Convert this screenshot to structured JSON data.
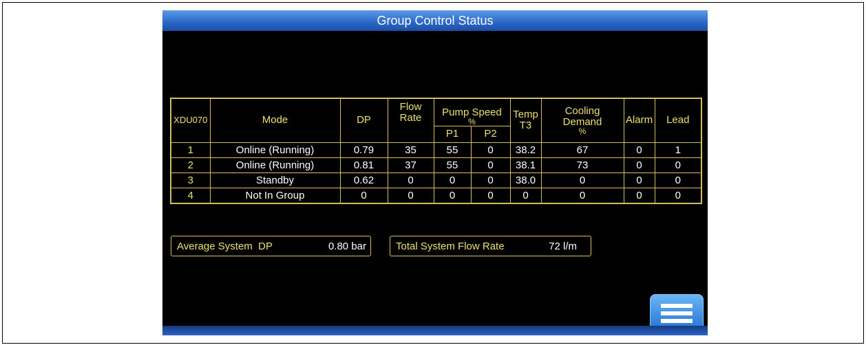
{
  "screen": {
    "title": "Group Control Status",
    "table": {
      "header": {
        "unit_id": "XDU070",
        "mode": "Mode",
        "dp": "DP",
        "flow_rate": "Flow Rate",
        "pump_speed": {
          "label": "Pump Speed",
          "unit": "%",
          "sub": [
            "P1",
            "P2"
          ]
        },
        "temp": "Temp T3",
        "cooling": {
          "label": "Cooling Demand",
          "unit": "%"
        },
        "alarm": "Alarm",
        "lead": "Lead"
      },
      "rows": [
        [
          "1",
          "Online (Running)",
          "0.79",
          "35",
          "55",
          "0",
          "38.2",
          "67",
          "0",
          "1"
        ],
        [
          "2",
          "Online (Running)",
          "0.81",
          "37",
          "55",
          "0",
          "38.1",
          "73",
          "0",
          "0"
        ],
        [
          "3",
          "Standby",
          "0.62",
          "0",
          "0",
          "0",
          "38.0",
          "0",
          "0",
          "0"
        ],
        [
          "4",
          "Not In Group",
          "0",
          "0",
          "0",
          "0",
          "0",
          "0",
          "0",
          "0"
        ]
      ]
    },
    "summary": [
      {
        "label": "Average System  DP",
        "value": "0.80 bar"
      },
      {
        "label": "Total System Flow Rate",
        "value": "72 l/m"
      }
    ]
  }
}
